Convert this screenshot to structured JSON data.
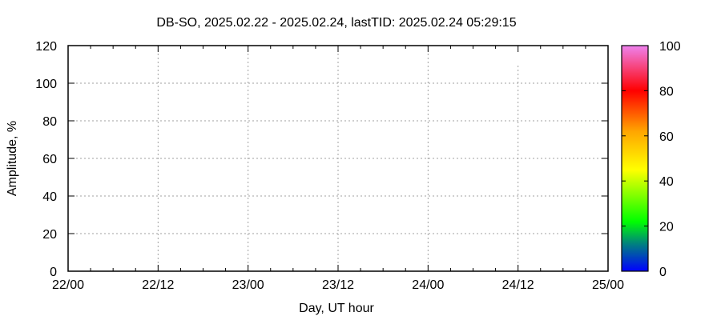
{
  "chart_data": {
    "type": "scatter",
    "title": "DB-SO, 2025.02.22 - 2025.02.24, lastTID: 2025.02.24 05:29:15",
    "xlabel": "Day, UT hour",
    "ylabel": "Amplitude, %",
    "x_tick_labels": [
      "22/00",
      "22/12",
      "23/00",
      "23/12",
      "24/00",
      "24/12",
      "25/00"
    ],
    "x_range": [
      "22/00",
      "25/00"
    ],
    "ylim": [
      0,
      120
    ],
    "y_ticks": [
      0,
      20,
      40,
      60,
      80,
      100,
      120
    ],
    "grid": true,
    "series": [],
    "colorbar": {
      "range": [
        0,
        100
      ],
      "ticks": [
        0,
        20,
        40,
        60,
        80,
        100
      ],
      "palette": [
        "#0000ff",
        "#008080",
        "#00ff00",
        "#ffff00",
        "#ffa500",
        "#ff0000",
        "#ee82ee"
      ]
    }
  }
}
